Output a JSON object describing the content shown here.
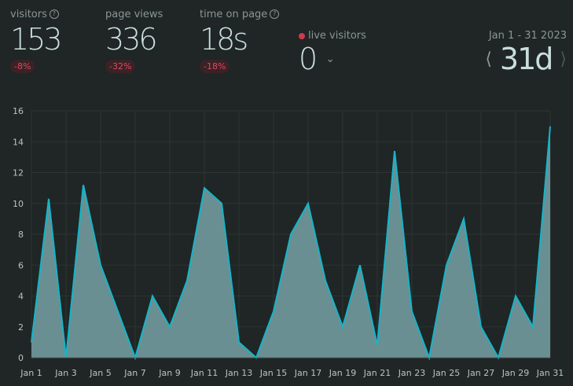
{
  "stats": [
    {
      "label": "visitors",
      "value": "153",
      "change": "-8%",
      "help": true
    },
    {
      "label": "page views",
      "value": "336",
      "change": "-32%",
      "help": false
    },
    {
      "label": "time on page",
      "value": "18s",
      "change": "-18%",
      "help": true
    }
  ],
  "live": {
    "label": "live visitors",
    "value": "0",
    "dot_color": "#cf3a4c"
  },
  "range": {
    "label": "Jan 1 - 31 2023",
    "value": "31d",
    "prev_icon": "chevron-left",
    "next_icon": "chevron-right"
  },
  "colors": {
    "line": "#16b4c8",
    "fill": "#6a8f92",
    "negative": "#e0495c"
  },
  "chart_data": {
    "type": "area",
    "x": [
      "Jan 1",
      "Jan 2",
      "Jan 3",
      "Jan 4",
      "Jan 5",
      "Jan 6",
      "Jan 7",
      "Jan 8",
      "Jan 9",
      "Jan 10",
      "Jan 11",
      "Jan 12",
      "Jan 13",
      "Jan 14",
      "Jan 15",
      "Jan 16",
      "Jan 17",
      "Jan 18",
      "Jan 19",
      "Jan 20",
      "Jan 21",
      "Jan 22",
      "Jan 23",
      "Jan 24",
      "Jan 25",
      "Jan 26",
      "Jan 27",
      "Jan 28",
      "Jan 29",
      "Jan 30",
      "Jan 31"
    ],
    "values": [
      1,
      10.3,
      0,
      11.2,
      6,
      3,
      0,
      4,
      2,
      5,
      11,
      10,
      1,
      0,
      3,
      8,
      10,
      5,
      2,
      6,
      0.8,
      13.4,
      3,
      0,
      6,
      9,
      2,
      0,
      4,
      2,
      15
    ],
    "xticks": [
      "Jan 1",
      "Jan 3",
      "Jan 5",
      "Jan 7",
      "Jan 9",
      "Jan 11",
      "Jan 13",
      "Jan 15",
      "Jan 17",
      "Jan 19",
      "Jan 21",
      "Jan 23",
      "Jan 25",
      "Jan 27",
      "Jan 29",
      "Jan 31"
    ],
    "yticks": [
      "0",
      "2",
      "4",
      "6",
      "8",
      "10",
      "12",
      "14",
      "16"
    ],
    "ylim": [
      0,
      16
    ],
    "grid": true
  }
}
